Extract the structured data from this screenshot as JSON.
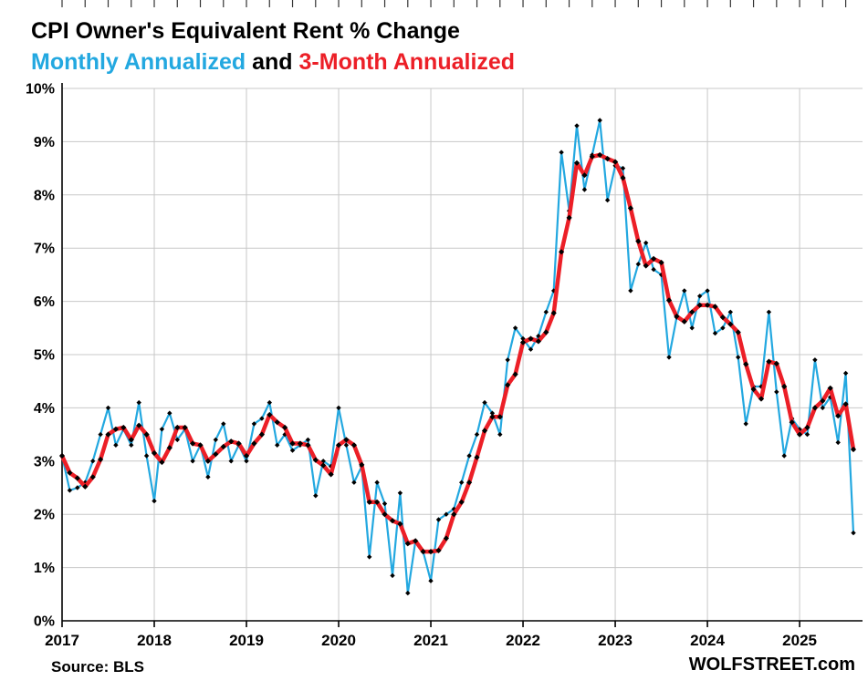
{
  "header": {
    "title": "CPI Owner's Equivalent Rent % Change",
    "subtitle_monthly": "Monthly Annualized",
    "subtitle_and": " and ",
    "subtitle_three_month": "3-Month Annualized"
  },
  "footer": {
    "source": "Source: BLS",
    "branding": "WOLFSTREET.com"
  },
  "colors": {
    "monthly": "#23A8E0",
    "three_month": "#EC1F27",
    "marker": "#000000",
    "grid": "#C8C8C8",
    "axis": "#000000"
  },
  "chart_data": {
    "type": "line",
    "title": "CPI Owner's Equivalent Rent % Change",
    "x_unit": "month",
    "x_start": "2017-01",
    "x_end": "2025-08",
    "year_ticks": [
      "2017",
      "2018",
      "2019",
      "2020",
      "2021",
      "2022",
      "2023",
      "2024",
      "2025"
    ],
    "y_ticks": [
      "0%",
      "1%",
      "2%",
      "3%",
      "4%",
      "5%",
      "6%",
      "7%",
      "8%",
      "9%",
      "10%"
    ],
    "ylim": [
      0,
      10
    ],
    "grid": true,
    "legend_position": "subtitle",
    "series": [
      {
        "name": "Monthly Annualized",
        "color_key": "monthly",
        "values": [
          3.1,
          2.45,
          2.5,
          2.6,
          3.0,
          3.5,
          4.0,
          3.3,
          3.6,
          3.3,
          4.1,
          3.1,
          2.25,
          3.6,
          3.9,
          3.4,
          3.6,
          3.0,
          3.3,
          2.7,
          3.4,
          3.7,
          3.0,
          3.3,
          3.0,
          3.7,
          3.8,
          4.1,
          3.3,
          3.5,
          3.2,
          3.3,
          3.4,
          2.35,
          3.0,
          2.9,
          4.0,
          3.3,
          2.6,
          2.9,
          1.2,
          2.6,
          2.2,
          0.85,
          2.4,
          0.52,
          1.5,
          1.3,
          0.75,
          1.9,
          2.0,
          2.1,
          2.6,
          3.1,
          3.5,
          4.1,
          3.9,
          3.5,
          4.9,
          5.5,
          5.3,
          5.1,
          5.35,
          5.8,
          6.2,
          8.8,
          7.7,
          9.3,
          8.1,
          8.75,
          9.4,
          7.9,
          8.55,
          8.5,
          6.2,
          6.7,
          7.1,
          6.6,
          6.5,
          4.95,
          5.7,
          6.2,
          5.5,
          6.1,
          6.2,
          5.4,
          5.5,
          5.8,
          4.95,
          3.7,
          4.4,
          4.4,
          5.8,
          4.3,
          3.1,
          3.8,
          3.6,
          3.5,
          4.9,
          4.0,
          4.2,
          3.35,
          4.65,
          1.65
        ]
      },
      {
        "name": "3-Month Annualized",
        "color_key": "three_month",
        "values": [
          3.1,
          2.78,
          2.68,
          2.52,
          2.7,
          3.03,
          3.5,
          3.6,
          3.63,
          3.4,
          3.67,
          3.5,
          3.15,
          2.98,
          3.25,
          3.63,
          3.63,
          3.33,
          3.3,
          3.0,
          3.13,
          3.27,
          3.37,
          3.33,
          3.1,
          3.33,
          3.5,
          3.87,
          3.73,
          3.63,
          3.33,
          3.33,
          3.3,
          3.02,
          2.92,
          2.75,
          3.3,
          3.4,
          3.3,
          2.93,
          2.23,
          2.23,
          2.0,
          1.88,
          1.82,
          1.45,
          1.5,
          1.3,
          1.3,
          1.32,
          1.55,
          2.0,
          2.23,
          2.6,
          3.07,
          3.57,
          3.83,
          3.83,
          4.43,
          4.63,
          5.23,
          5.3,
          5.25,
          5.42,
          5.78,
          6.93,
          7.57,
          8.6,
          8.37,
          8.72,
          8.75,
          8.68,
          8.62,
          8.32,
          7.75,
          7.13,
          6.67,
          6.8,
          6.73,
          6.02,
          5.72,
          5.62,
          5.8,
          5.93,
          5.93,
          5.9,
          5.7,
          5.57,
          5.42,
          4.82,
          4.35,
          4.17,
          4.87,
          4.83,
          4.4,
          3.73,
          3.5,
          3.63,
          4.0,
          4.13,
          4.37,
          3.85,
          4.07,
          3.22
        ]
      }
    ]
  }
}
